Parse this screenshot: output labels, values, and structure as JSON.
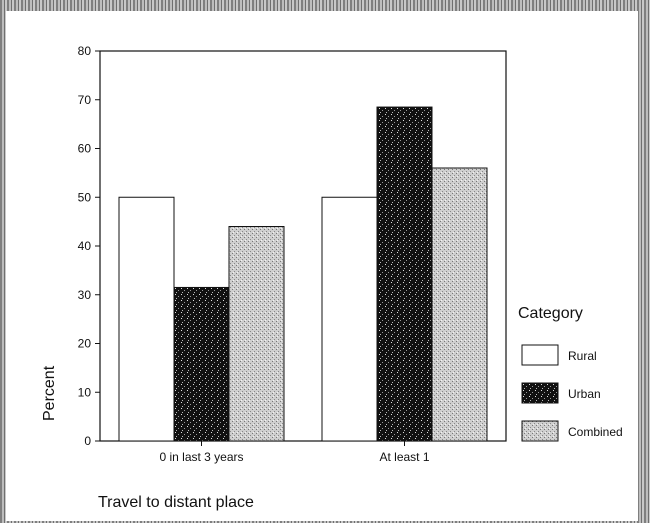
{
  "chart_data": {
    "type": "bar",
    "categories": [
      "0 in last 3 years",
      "At least 1"
    ],
    "series": [
      {
        "name": "Rural",
        "values": [
          50,
          50
        ]
      },
      {
        "name": "Urban",
        "values": [
          31.5,
          68.5
        ]
      },
      {
        "name": "Combined",
        "values": [
          44,
          56
        ]
      }
    ],
    "xlabel": "Travel to distant place",
    "ylabel": "Percent",
    "ylim": [
      0,
      80
    ],
    "yticks": [
      0,
      10,
      20,
      30,
      40,
      50,
      60,
      70,
      80
    ],
    "legend": {
      "title": "Category",
      "placement": "right"
    },
    "grid": false,
    "colors": {
      "Rural": "#ffffff",
      "Urban": "#111111",
      "Combined": "#c8c8c8"
    }
  }
}
